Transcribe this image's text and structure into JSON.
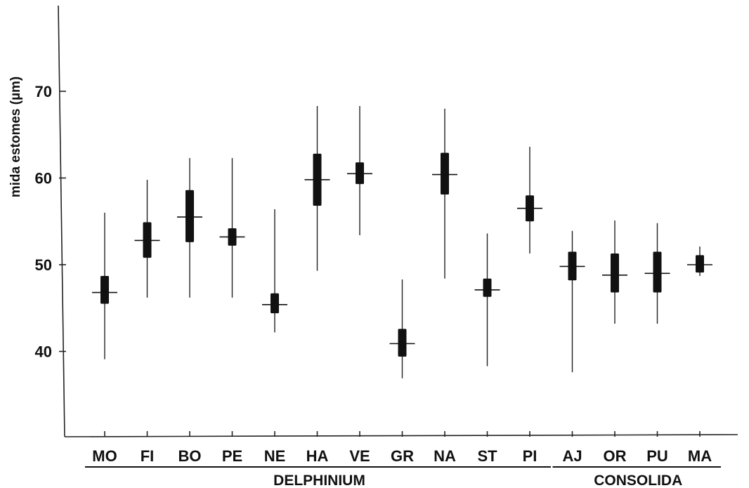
{
  "chart_data": {
    "type": "box",
    "ylabel": "mida estomes (µm)",
    "yticks": [
      40,
      50,
      60,
      70
    ],
    "ylim": [
      30,
      79
    ],
    "categories": [
      "MO",
      "FI",
      "BO",
      "PE",
      "NE",
      "HA",
      "VE",
      "GR",
      "NA",
      "ST",
      "PI",
      "AJ",
      "OR",
      "PU",
      "MA"
    ],
    "min": [
      39.1,
      46.2,
      46.2,
      46.2,
      42.2,
      49.3,
      53.4,
      36.9,
      48.4,
      38.3,
      51.3,
      37.6,
      43.2,
      43.2,
      48.7
    ],
    "q1": [
      45.5,
      50.8,
      52.6,
      52.2,
      44.4,
      56.8,
      59.3,
      39.4,
      58.1,
      46.3,
      55.0,
      48.2,
      46.8,
      46.8,
      49.1
    ],
    "median": [
      46.8,
      52.8,
      55.5,
      53.2,
      45.4,
      59.8,
      60.5,
      40.9,
      60.4,
      47.1,
      56.5,
      49.8,
      48.8,
      49.0,
      50.0
    ],
    "q3": [
      48.7,
      54.9,
      58.6,
      54.2,
      46.7,
      62.8,
      61.8,
      42.6,
      62.9,
      48.4,
      58.0,
      51.5,
      51.3,
      51.5,
      51.1
    ],
    "max": [
      56.0,
      59.8,
      62.3,
      62.3,
      56.4,
      68.3,
      68.3,
      48.3,
      68.0,
      53.6,
      63.6,
      53.9,
      55.1,
      54.8,
      52.1
    ],
    "groups": [
      {
        "label": "DELPHINIUM",
        "from": 0,
        "to": 10
      },
      {
        "label": "CONSOLIDA",
        "from": 11,
        "to": 14
      }
    ]
  }
}
